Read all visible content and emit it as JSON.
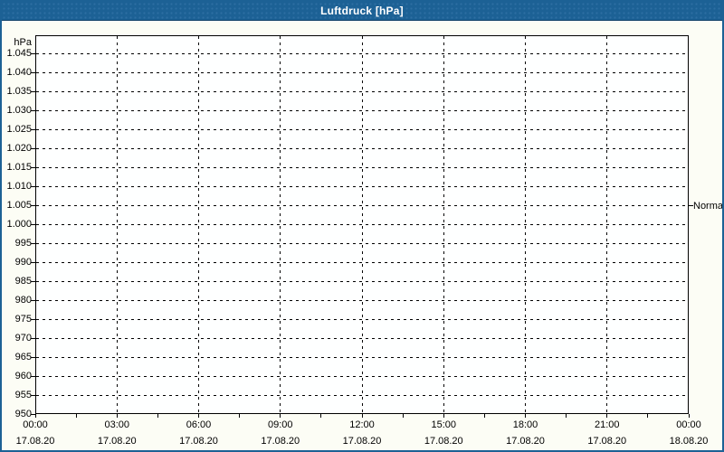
{
  "window": {
    "title": "Luftdruck [hPa]"
  },
  "colors": {
    "titlebar_bg": "#1c6195",
    "titlebar_dot": "#2e6fa3",
    "titlebar_line": "#0f3f66",
    "frame": "#1c6195",
    "page_bg": "#fcfdf5",
    "plot_bg": "#feffff",
    "ink": "#000000",
    "title_text": "#ffffff"
  },
  "chart_data": {
    "type": "line",
    "title": "Luftdruck [hPa]",
    "ylabel": "hPa",
    "ylim": [
      950,
      1050
    ],
    "y_grid_step_hpa": 5,
    "grid": true,
    "legend": "none",
    "series": [],
    "y_ticks": [
      {
        "value": 1045,
        "label": "1.045"
      },
      {
        "value": 1040,
        "label": "1.040"
      },
      {
        "value": 1035,
        "label": "1.035"
      },
      {
        "value": 1030,
        "label": "1.030"
      },
      {
        "value": 1025,
        "label": "1.025"
      },
      {
        "value": 1020,
        "label": "1.020"
      },
      {
        "value": 1015,
        "label": "1.015"
      },
      {
        "value": 1010,
        "label": "1.010"
      },
      {
        "value": 1005,
        "label": "1.005"
      },
      {
        "value": 1000,
        "label": "1.000"
      },
      {
        "value": 995,
        "label": "995"
      },
      {
        "value": 990,
        "label": "990"
      },
      {
        "value": 985,
        "label": "985"
      },
      {
        "value": 980,
        "label": "980"
      },
      {
        "value": 975,
        "label": "975"
      },
      {
        "value": 970,
        "label": "970"
      },
      {
        "value": 965,
        "label": "965"
      },
      {
        "value": 960,
        "label": "960"
      },
      {
        "value": 955,
        "label": "955"
      },
      {
        "value": 950,
        "label": "950"
      }
    ],
    "x_range_hours": [
      0,
      24
    ],
    "x_major_step_hours": 3,
    "x_minor_tick_step_hours": 1.5,
    "x_ticks": [
      {
        "hours": 0,
        "time": "00:00",
        "date": "17.08.20"
      },
      {
        "hours": 3,
        "time": "03:00",
        "date": "17.08.20"
      },
      {
        "hours": 6,
        "time": "06:00",
        "date": "17.08.20"
      },
      {
        "hours": 9,
        "time": "09:00",
        "date": "17.08.20"
      },
      {
        "hours": 12,
        "time": "12:00",
        "date": "17.08.20"
      },
      {
        "hours": 15,
        "time": "15:00",
        "date": "17.08.20"
      },
      {
        "hours": 18,
        "time": "18:00",
        "date": "17.08.20"
      },
      {
        "hours": 21,
        "time": "21:00",
        "date": "17.08.20"
      },
      {
        "hours": 24,
        "time": "00:00",
        "date": "18.08.20"
      }
    ],
    "reference_lines": [
      {
        "label": "Normal",
        "value": 1005
      }
    ]
  }
}
